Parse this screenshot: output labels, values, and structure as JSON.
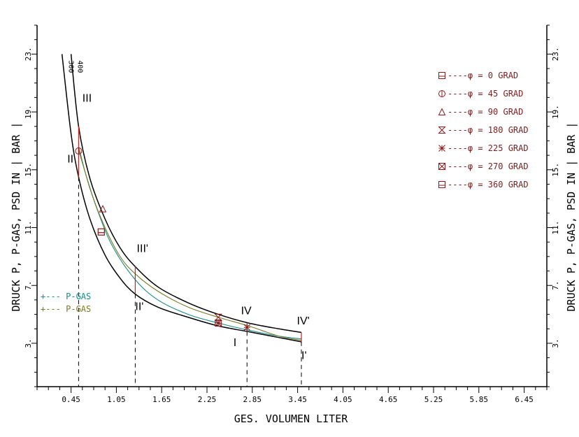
{
  "colors": {
    "axis": "#000000",
    "marker": "#8b1a1a",
    "legend_text": "#7a1f1f",
    "pgas_teal": "#1a8a8a",
    "pgas_olive": "#7a7a2a",
    "red_line": "#cc2222"
  },
  "chart_data": {
    "type": "line",
    "xlabel": "GES. VOLUMEN LITER",
    "ylabel": "DRUCK P, P-GAS, PSD IN | BAR |",
    "xlim": [
      0.0,
      6.75
    ],
    "ylim": [
      0.0,
      25.0
    ],
    "x_ticks": [
      "0.45",
      "1.05",
      "1.65",
      "2.25",
      "2.85",
      "3.45",
      "4.05",
      "4.65",
      "5.25",
      "5.85",
      "6.45"
    ],
    "x_tick_values": [
      0.45,
      1.05,
      1.65,
      2.25,
      2.85,
      3.45,
      4.05,
      4.65,
      5.25,
      5.85,
      6.45
    ],
    "y_ticks": [
      "3.",
      "7.",
      "11.",
      "15.",
      "19.",
      "23."
    ],
    "y_tick_values": [
      3,
      7,
      11,
      15,
      19,
      23
    ],
    "curve_labels": [
      "300",
      "400"
    ],
    "point_labels": [
      "III",
      "II",
      "III'",
      "II'",
      "IV",
      "I",
      "IV'",
      "I'"
    ],
    "series": [
      {
        "name": "300",
        "color": "#000000",
        "x": [
          0.33,
          0.45,
          0.55,
          0.7,
          0.9,
          1.1,
          1.3,
          1.6,
          2.0,
          2.4,
          2.8,
          3.2,
          3.5
        ],
        "y": [
          23.0,
          17.5,
          14.5,
          11.6,
          9.1,
          7.5,
          6.4,
          5.5,
          4.8,
          4.2,
          3.8,
          3.4,
          3.1
        ]
      },
      {
        "name": "400",
        "color": "#000000",
        "x": [
          0.45,
          0.55,
          0.7,
          0.9,
          1.1,
          1.3,
          1.6,
          2.0,
          2.4,
          2.8,
          3.2,
          3.5
        ],
        "y": [
          23.0,
          18.0,
          14.4,
          11.6,
          9.6,
          8.3,
          6.9,
          5.8,
          5.0,
          4.4,
          4.0,
          3.75
        ]
      },
      {
        "name": "P-GAS",
        "color": "#1a8a8a",
        "x": [
          0.55,
          0.65,
          0.8,
          1.0,
          1.3,
          1.6,
          2.0,
          2.4,
          2.8,
          3.2,
          3.5
        ],
        "y": [
          16.4,
          14.6,
          12.2,
          9.7,
          7.4,
          6.0,
          5.0,
          4.4,
          3.9,
          3.5,
          3.3
        ]
      },
      {
        "name": "P-GAS",
        "color": "#7a7a2a",
        "x": [
          0.55,
          0.7,
          0.9,
          1.1,
          1.3,
          1.6,
          2.0,
          2.4,
          2.8,
          3.2,
          3.5
        ],
        "y": [
          16.6,
          13.7,
          11.0,
          9.0,
          7.8,
          6.6,
          5.5,
          4.8,
          4.2,
          3.5,
          3.2
        ]
      }
    ],
    "vertical_lines": [
      {
        "x": 0.55,
        "y_top": 18.0,
        "y_bottom": 14.5
      },
      {
        "x": 1.3,
        "y_top": 8.3,
        "y_bottom": 6.4
      },
      {
        "x": 2.78,
        "y_top": 4.4,
        "y_bottom": 3.8
      },
      {
        "x": 3.5,
        "y_top": 3.75,
        "y_bottom": 3.1
      }
    ],
    "dashed_verticals": [
      0.55,
      1.3,
      2.78,
      3.5
    ],
    "markers": [
      {
        "symbol": "square",
        "phi": "0",
        "x": 0.85,
        "y": 10.7
      },
      {
        "symbol": "circle",
        "phi": "45",
        "x": 0.55,
        "y": 16.3
      },
      {
        "symbol": "triangle",
        "phi": "90",
        "x": 0.87,
        "y": 12.3
      },
      {
        "symbol": "hourglass",
        "phi": "180",
        "x": 2.4,
        "y": 4.8
      },
      {
        "symbol": "asterisk",
        "phi": "225",
        "x": 2.4,
        "y": 4.4
      },
      {
        "symbol": "asterisk",
        "phi": "225",
        "x": 2.78,
        "y": 4.1
      },
      {
        "symbol": "xbox",
        "phi": "270",
        "x": 2.4,
        "y": 4.4
      },
      {
        "symbol": "square",
        "phi": "360",
        "x": 0.85,
        "y": 10.7
      }
    ]
  },
  "legend": {
    "phi_prefix": "----φ =",
    "unit": "GRAD",
    "entries": [
      {
        "symbol": "square",
        "value": "0"
      },
      {
        "symbol": "circle",
        "value": "45"
      },
      {
        "symbol": "triangle",
        "value": "90"
      },
      {
        "symbol": "hourglass",
        "value": "180"
      },
      {
        "symbol": "asterisk",
        "value": "225"
      },
      {
        "symbol": "xbox",
        "value": "270"
      },
      {
        "symbol": "square",
        "value": "360"
      }
    ],
    "pgas_entries": [
      {
        "text": "+--- P-GAS",
        "color": "#1a8a8a"
      },
      {
        "text": "+--- P-GAS",
        "color": "#7a7a2a"
      }
    ]
  }
}
